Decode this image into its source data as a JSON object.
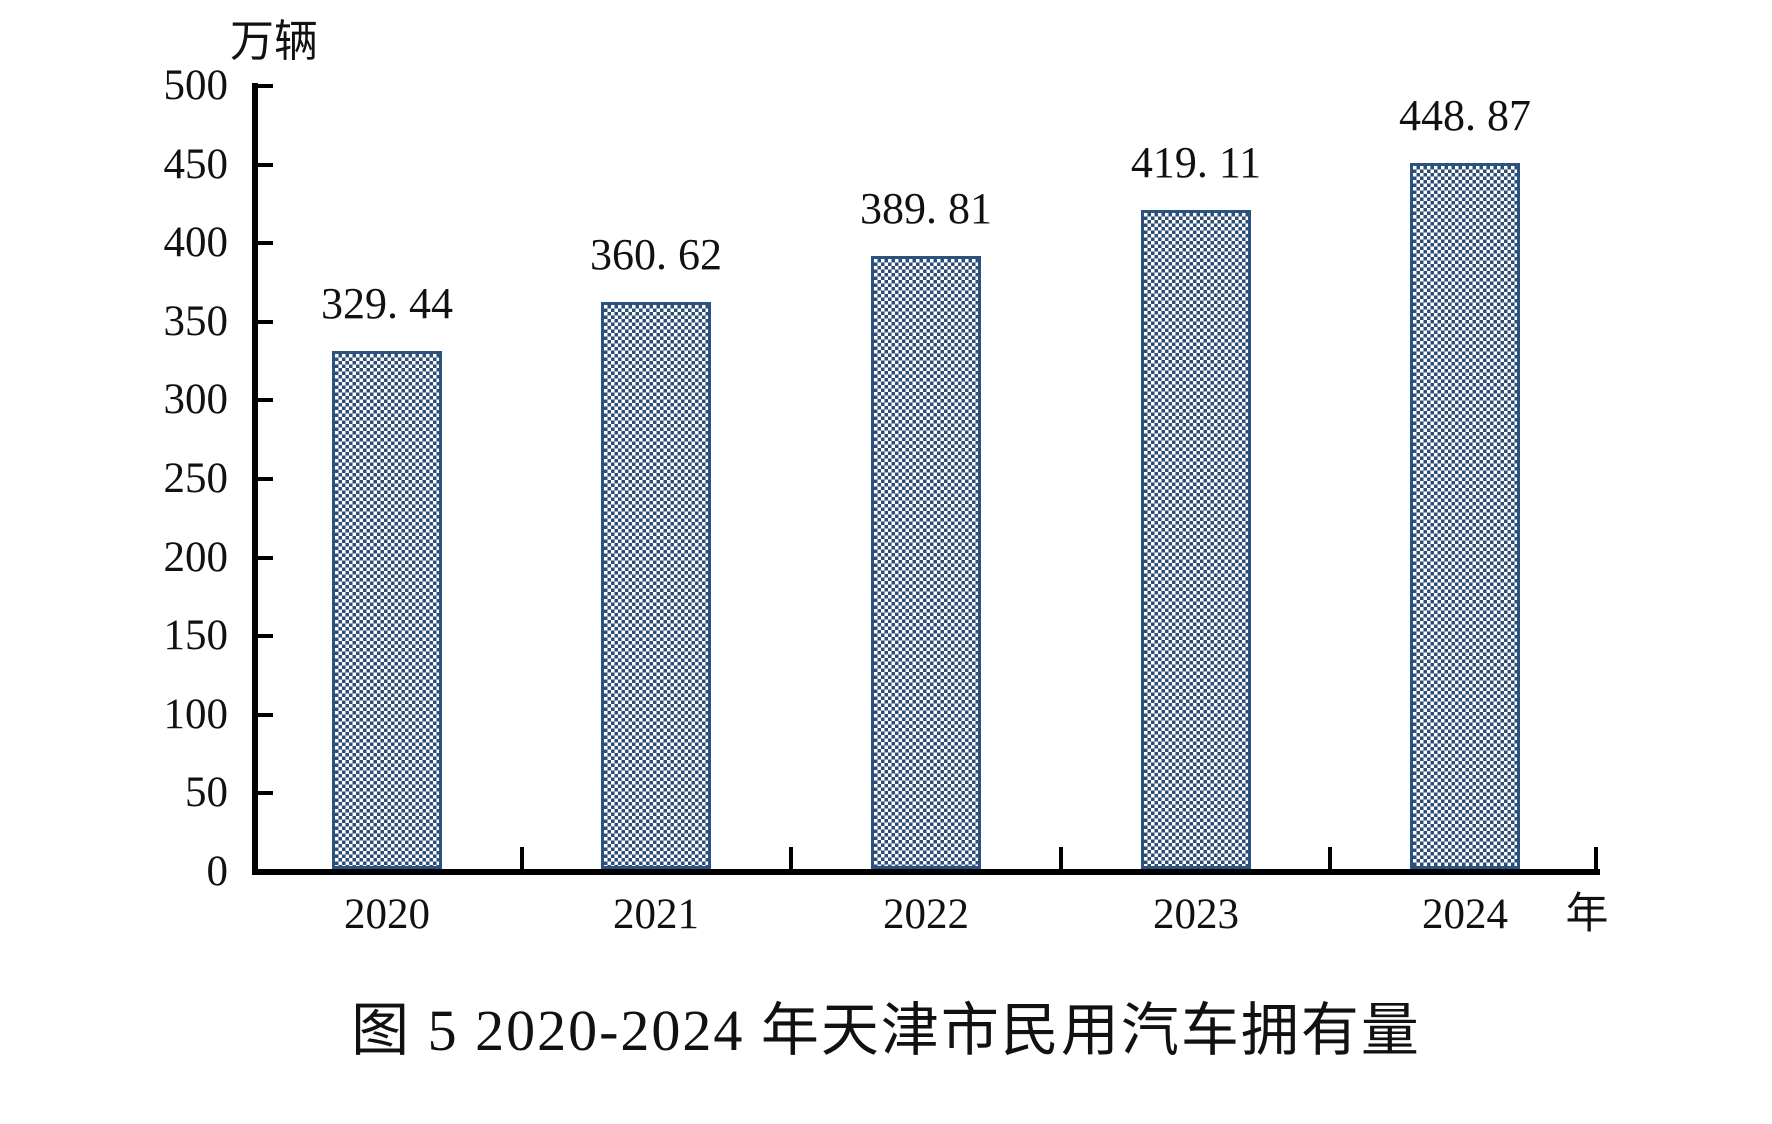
{
  "chart_data": {
    "type": "bar",
    "title": "图 5  2020-2024 年天津市民用汽车拥有量",
    "unit_label": "万辆",
    "x_axis_suffix": "年",
    "categories": [
      "2020",
      "2021",
      "2022",
      "2023",
      "2024"
    ],
    "values": [
      329.44,
      360.62,
      389.81,
      419.11,
      448.87
    ],
    "value_labels": [
      "329. 44",
      "360. 62",
      "389. 81",
      "419. 11",
      "448. 87"
    ],
    "ylim": [
      0,
      500
    ],
    "y_ticks": [
      0,
      50,
      100,
      150,
      200,
      250,
      300,
      350,
      400,
      450,
      500
    ],
    "grid": false,
    "legend": null,
    "bar_pattern": "small-checkerboard",
    "bar_fill_color": "#2e4d74",
    "bar_border_color": "#2b5280",
    "axis_color": "#000000",
    "background_color": "#ffffff"
  }
}
